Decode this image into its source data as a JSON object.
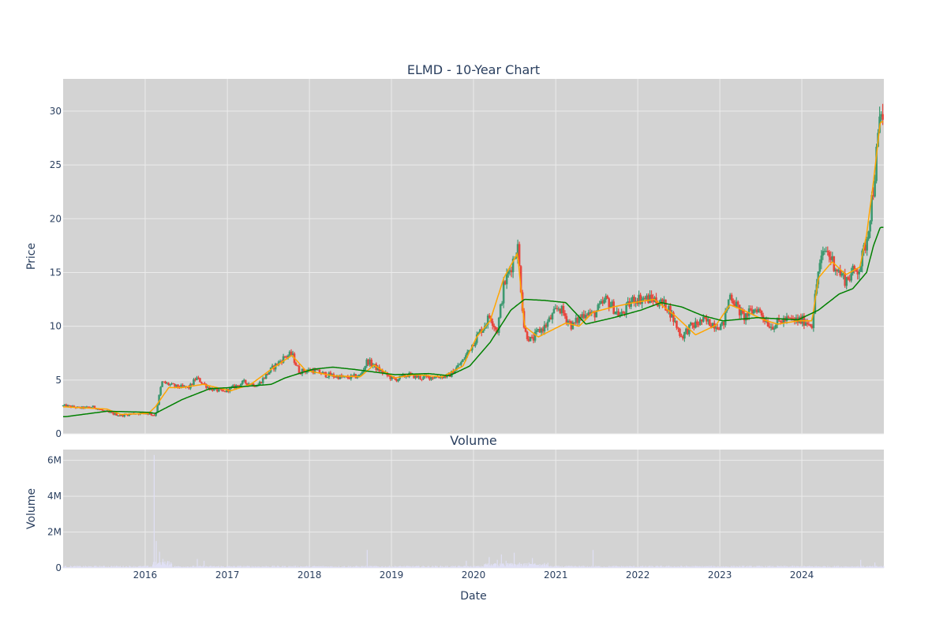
{
  "chart_data": [
    {
      "type": "candlestick",
      "title": "ELMD - 10-Year Chart",
      "ylabel": "Price",
      "ylim": [
        0,
        33
      ],
      "yticks": [
        0,
        5,
        10,
        15,
        20,
        25,
        30
      ],
      "xlim": [
        "2015-01-01",
        "2024-12-31"
      ],
      "grid": true,
      "up_color": "#3d9970",
      "down_color": "#e8453c",
      "close_series": {
        "dates": [
          "2015-01",
          "2015-03",
          "2015-05",
          "2015-07",
          "2015-09",
          "2015-11",
          "2016-01",
          "2016-02",
          "2016-03",
          "2016-05",
          "2016-07",
          "2016-08",
          "2016-10",
          "2016-12",
          "2017-03",
          "2017-05",
          "2017-07",
          "2017-09",
          "2017-10",
          "2017-11",
          "2018-01",
          "2018-03",
          "2018-06",
          "2018-08",
          "2018-09",
          "2018-11",
          "2019-01",
          "2019-03",
          "2019-05",
          "2019-07",
          "2019-09",
          "2019-11",
          "2020-01",
          "2020-03",
          "2020-04",
          "2020-05",
          "2020-06",
          "2020-07",
          "2020-08",
          "2020-09",
          "2020-10",
          "2020-11",
          "2021-01",
          "2021-03",
          "2021-05",
          "2021-06",
          "2021-08",
          "2021-10",
          "2021-12",
          "2022-03",
          "2022-05",
          "2022-07",
          "2022-08",
          "2022-10",
          "2023-01",
          "2023-02",
          "2023-04",
          "2023-06",
          "2023-08",
          "2023-10",
          "2024-01",
          "2024-02",
          "2024-03",
          "2024-04",
          "2024-06",
          "2024-07",
          "2024-08",
          "2024-09",
          "2024-10",
          "2024-11",
          "2024-12"
        ],
        "values": [
          2.6,
          2.4,
          2.5,
          2.0,
          1.7,
          1.9,
          1.9,
          1.7,
          4.8,
          4.4,
          4.3,
          5.2,
          4.2,
          3.9,
          4.8,
          4.5,
          6.0,
          7.2,
          7.4,
          5.8,
          5.9,
          5.5,
          5.2,
          5.4,
          6.8,
          5.8,
          5.0,
          5.5,
          5.2,
          5.3,
          5.4,
          6.8,
          9.0,
          11.0,
          9.5,
          13.8,
          15.5,
          17.5,
          9.5,
          8.6,
          9.5,
          10.0,
          11.8,
          10.0,
          11.4,
          11.0,
          12.5,
          10.9,
          12.6,
          12.5,
          11.8,
          9.0,
          9.8,
          10.5,
          10.0,
          13.0,
          10.8,
          11.7,
          10.0,
          10.6,
          10.5,
          10.2,
          15.3,
          17.2,
          15.0,
          14.3,
          15.0,
          15.5,
          18.0,
          23.0,
          29.5
        ]
      },
      "ma_short": {
        "color": "#ffa500",
        "dates": [
          "2015-01",
          "2015-07",
          "2015-09",
          "2016-01",
          "2016-02",
          "2016-04",
          "2016-06",
          "2016-09",
          "2017-01",
          "2017-04",
          "2017-07",
          "2017-10",
          "2017-12",
          "2018-04",
          "2018-08",
          "2018-10",
          "2019-01",
          "2019-04",
          "2019-08",
          "2019-11",
          "2020-01",
          "2020-03",
          "2020-05",
          "2020-07",
          "2020-08",
          "2020-10",
          "2021-02",
          "2021-04",
          "2021-06",
          "2021-09",
          "2021-12",
          "2022-03",
          "2022-06",
          "2022-09",
          "2022-12",
          "2023-02",
          "2023-04",
          "2023-07",
          "2023-09",
          "2023-12",
          "2024-02",
          "2024-03",
          "2024-05",
          "2024-07",
          "2024-09",
          "2024-10",
          "2024-11",
          "2024-12"
        ],
        "values": [
          2.5,
          2.3,
          1.8,
          1.9,
          2.5,
          4.3,
          4.3,
          4.6,
          4.0,
          4.6,
          6.0,
          7.3,
          5.9,
          5.4,
          5.3,
          6.4,
          5.2,
          5.5,
          5.3,
          6.3,
          9.0,
          10.5,
          14.5,
          16.8,
          10.0,
          9.0,
          10.3,
          10.0,
          11.3,
          11.8,
          12.2,
          12.5,
          11.0,
          9.2,
          10.1,
          12.0,
          11.5,
          10.6,
          10.2,
          10.5,
          10.5,
          14.5,
          16.0,
          14.8,
          15.5,
          18.5,
          23.5,
          29.0
        ]
      },
      "ma_long": {
        "color": "#008000",
        "dates": [
          "2015-01",
          "2015-07",
          "2016-01",
          "2016-02",
          "2016-06",
          "2016-10",
          "2017-01",
          "2017-07",
          "2017-09",
          "2018-01",
          "2018-04",
          "2018-07",
          "2019-01",
          "2019-06",
          "2019-09",
          "2019-12",
          "2020-03",
          "2020-06",
          "2020-08",
          "2020-11",
          "2021-02",
          "2021-05",
          "2021-09",
          "2022-01",
          "2022-04",
          "2022-07",
          "2022-10",
          "2023-01",
          "2023-06",
          "2023-12",
          "2024-03",
          "2024-06",
          "2024-08",
          "2024-10",
          "2024-11",
          "2024-12"
        ],
        "values": [
          1.6,
          2.1,
          2.0,
          1.9,
          3.2,
          4.2,
          4.3,
          4.6,
          5.2,
          6.0,
          6.2,
          6.0,
          5.5,
          5.6,
          5.4,
          6.3,
          8.5,
          11.5,
          12.5,
          12.4,
          12.2,
          10.2,
          10.8,
          11.5,
          12.2,
          11.8,
          11.0,
          10.5,
          10.8,
          10.6,
          11.5,
          13.0,
          13.5,
          15.0,
          17.5,
          19.2
        ]
      }
    },
    {
      "type": "bar",
      "title": "Volume",
      "ylabel": "Volume",
      "xlabel": "Date",
      "ylim": [
        0,
        6600000
      ],
      "yticks": [
        0,
        2000000,
        4000000,
        6000000
      ],
      "ytick_labels": [
        "0",
        "2M",
        "4M",
        "6M"
      ],
      "xtick_labels": [
        "2016",
        "2017",
        "2018",
        "2019",
        "2020",
        "2021",
        "2022",
        "2023",
        "2024"
      ],
      "bar_color": "#e0e0f5",
      "spikes": {
        "dates": [
          "2016-02-10",
          "2016-02-20",
          "2016-03-05",
          "2016-03-20",
          "2016-08-20",
          "2016-09-20",
          "2018-09-15",
          "2019-12-01",
          "2020-03-10",
          "2020-04-15",
          "2020-05-05",
          "2020-05-25",
          "2020-07-01",
          "2020-09-20",
          "2021-06-15",
          "2024-09-20",
          "2024-11-20"
        ],
        "values": [
          6300000,
          1500000,
          900000,
          500000,
          500000,
          400000,
          1000000,
          400000,
          600000,
          450000,
          750000,
          400000,
          850000,
          550000,
          1000000,
          450000,
          300000
        ]
      }
    }
  ]
}
